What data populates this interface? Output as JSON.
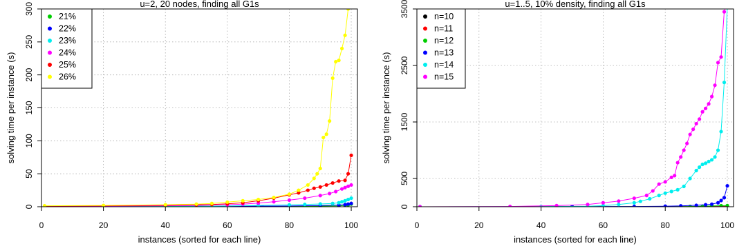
{
  "chart_data": [
    {
      "type": "line",
      "title": "u=2, 20 nodes, finding all G1s",
      "xlabel": "instances (sorted for each line)",
      "ylabel": "solving time per instance (s)",
      "xlim": [
        0,
        102
      ],
      "ylim": [
        0,
        300
      ],
      "xticks": [
        0,
        20,
        40,
        60,
        80,
        100
      ],
      "xtick_labels": [
        "0",
        "20",
        "40",
        "60",
        "80",
        "100"
      ],
      "yticks": [
        0,
        50,
        100,
        150,
        200,
        250,
        300
      ],
      "ytick_labels": [
        "0",
        "50",
        "100",
        "150",
        "200",
        "250",
        "300"
      ],
      "grid": true,
      "legend_position": "top-left",
      "series": [
        {
          "name": "21%",
          "color": "#00cd00",
          "points": [
            [
              1,
              0
            ],
            [
              20,
              0
            ],
            [
              40,
              0.2
            ],
            [
              60,
              0.5
            ],
            [
              80,
              0.8
            ],
            [
              90,
              1
            ],
            [
              96,
              1.4
            ],
            [
              98,
              2
            ],
            [
              99,
              2.8
            ],
            [
              100,
              4
            ]
          ]
        },
        {
          "name": "22%",
          "color": "#0000ff",
          "points": [
            [
              1,
              0
            ],
            [
              20,
              0.2
            ],
            [
              40,
              0.4
            ],
            [
              60,
              0.7
            ],
            [
              80,
              1.2
            ],
            [
              90,
              1.8
            ],
            [
              96,
              2.5
            ],
            [
              98,
              3.2
            ],
            [
              99,
              4
            ],
            [
              100,
              5
            ]
          ]
        },
        {
          "name": "23%",
          "color": "#00eeee",
          "points": [
            [
              1,
              0
            ],
            [
              20,
              0.3
            ],
            [
              40,
              0.6
            ],
            [
              60,
              1.2
            ],
            [
              70,
              2
            ],
            [
              80,
              2.8
            ],
            [
              85,
              3.5
            ],
            [
              90,
              4.2
            ],
            [
              94,
              5
            ],
            [
              96,
              6
            ],
            [
              97,
              7.5
            ],
            [
              98,
              9
            ],
            [
              99,
              11
            ],
            [
              100,
              13
            ]
          ]
        },
        {
          "name": "24%",
          "color": "#ff00ff",
          "points": [
            [
              1,
              0.5
            ],
            [
              20,
              1
            ],
            [
              40,
              1.5
            ],
            [
              50,
              2
            ],
            [
              60,
              3
            ],
            [
              65,
              4
            ],
            [
              70,
              5.5
            ],
            [
              75,
              7.5
            ],
            [
              80,
              10
            ],
            [
              85,
              13
            ],
            [
              90,
              17
            ],
            [
              93,
              20
            ],
            [
              95,
              23
            ],
            [
              97,
              27
            ],
            [
              98,
              29
            ],
            [
              99,
              31
            ],
            [
              100,
              33
            ]
          ]
        },
        {
          "name": "25%",
          "color": "#ff0000",
          "points": [
            [
              1,
              1
            ],
            [
              20,
              1.5
            ],
            [
              40,
              2.2
            ],
            [
              50,
              3
            ],
            [
              55,
              3.5
            ],
            [
              60,
              4.5
            ],
            [
              65,
              6
            ],
            [
              70,
              9
            ],
            [
              75,
              13
            ],
            [
              80,
              18
            ],
            [
              83,
              21
            ],
            [
              86,
              25
            ],
            [
              88,
              28
            ],
            [
              90,
              30
            ],
            [
              92,
              33
            ],
            [
              94,
              36
            ],
            [
              96,
              39
            ],
            [
              98,
              40
            ],
            [
              99,
              50
            ],
            [
              100,
              78
            ]
          ]
        },
        {
          "name": "26%",
          "color": "#ffff00",
          "points": [
            [
              1,
              1.5
            ],
            [
              20,
              2
            ],
            [
              40,
              3
            ],
            [
              50,
              4
            ],
            [
              55,
              5
            ],
            [
              60,
              7
            ],
            [
              65,
              9
            ],
            [
              70,
              11
            ],
            [
              75,
              14
            ],
            [
              80,
              19
            ],
            [
              83,
              25
            ],
            [
              86,
              33
            ],
            [
              88,
              43
            ],
            [
              89,
              50
            ],
            [
              90,
              58
            ],
            [
              91,
              105
            ],
            [
              92,
              110
            ],
            [
              93,
              130
            ],
            [
              94,
              195
            ],
            [
              95,
              220
            ],
            [
              96,
              222
            ],
            [
              97,
              240
            ],
            [
              98,
              260
            ],
            [
              99,
              300
            ],
            [
              100,
              305
            ]
          ]
        }
      ]
    },
    {
      "type": "line",
      "title": "u=1..5, 10% density, finding all G1s",
      "xlabel": "instances (sorted for each line)",
      "ylabel": "solving time per instance (s)",
      "xlim": [
        0,
        102
      ],
      "ylim": [
        0,
        3500
      ],
      "xticks": [
        0,
        20,
        40,
        60,
        80,
        100
      ],
      "xtick_labels": [
        "0",
        "20",
        "40",
        "60",
        "80",
        "100"
      ],
      "yticks": [
        0,
        500,
        1500,
        2500,
        3500
      ],
      "ytick_labels": [
        "0",
        "500",
        "1500",
        "2500",
        "3500"
      ],
      "grid": true,
      "legend_position": "top-left",
      "series": [
        {
          "name": "n=10",
          "color": "#000000",
          "points": [
            [
              1,
              0
            ],
            [
              50,
              0
            ],
            [
              80,
              1
            ],
            [
              95,
              2
            ],
            [
              100,
              3
            ]
          ]
        },
        {
          "name": "n=11",
          "color": "#ff0000",
          "points": [
            [
              1,
              0
            ],
            [
              50,
              0
            ],
            [
              80,
              1
            ],
            [
              95,
              3
            ],
            [
              100,
              5
            ]
          ]
        },
        {
          "name": "n=12",
          "color": "#00cd00",
          "points": [
            [
              1,
              0
            ],
            [
              50,
              0
            ],
            [
              80,
              2
            ],
            [
              88,
              5
            ],
            [
              92,
              10
            ],
            [
              95,
              15
            ],
            [
              98,
              18
            ],
            [
              100,
              20
            ]
          ]
        },
        {
          "name": "n=13",
          "color": "#0000ff",
          "points": [
            [
              1,
              0
            ],
            [
              50,
              2
            ],
            [
              70,
              5
            ],
            [
              80,
              10
            ],
            [
              85,
              15
            ],
            [
              90,
              25
            ],
            [
              93,
              35
            ],
            [
              95,
              45
            ],
            [
              97,
              70
            ],
            [
              98,
              110
            ],
            [
              99,
              160
            ],
            [
              100,
              370
            ]
          ]
        },
        {
          "name": "n=14",
          "color": "#00eeee",
          "points": [
            [
              1,
              0
            ],
            [
              40,
              3
            ],
            [
              55,
              10
            ],
            [
              60,
              20
            ],
            [
              65,
              40
            ],
            [
              70,
              70
            ],
            [
              72,
              95
            ],
            [
              75,
              140
            ],
            [
              78,
              200
            ],
            [
              80,
              240
            ],
            [
              82,
              270
            ],
            [
              84,
              300
            ],
            [
              86,
              360
            ],
            [
              88,
              500
            ],
            [
              90,
              640
            ],
            [
              91,
              700
            ],
            [
              92,
              750
            ],
            [
              93,
              770
            ],
            [
              94,
              800
            ],
            [
              95,
              830
            ],
            [
              96,
              880
            ],
            [
              97,
              1000
            ],
            [
              98,
              1330
            ],
            [
              99,
              2200
            ],
            [
              100,
              3550
            ]
          ]
        },
        {
          "name": "n=15",
          "color": "#ff00ff",
          "points": [
            [
              1,
              0
            ],
            [
              30,
              5
            ],
            [
              45,
              20
            ],
            [
              55,
              40
            ],
            [
              60,
              70
            ],
            [
              65,
              100
            ],
            [
              70,
              150
            ],
            [
              74,
              200
            ],
            [
              76,
              280
            ],
            [
              78,
              400
            ],
            [
              80,
              440
            ],
            [
              82,
              520
            ],
            [
              83,
              550
            ],
            [
              84,
              780
            ],
            [
              85,
              880
            ],
            [
              86,
              1000
            ],
            [
              87,
              1120
            ],
            [
              88,
              1280
            ],
            [
              89,
              1370
            ],
            [
              90,
              1470
            ],
            [
              91,
              1550
            ],
            [
              92,
              1680
            ],
            [
              93,
              1740
            ],
            [
              94,
              1820
            ],
            [
              95,
              1950
            ],
            [
              96,
              2150
            ],
            [
              97,
              2550
            ],
            [
              98,
              2650
            ],
            [
              99,
              3450
            ],
            [
              100,
              3600
            ]
          ]
        }
      ]
    }
  ]
}
